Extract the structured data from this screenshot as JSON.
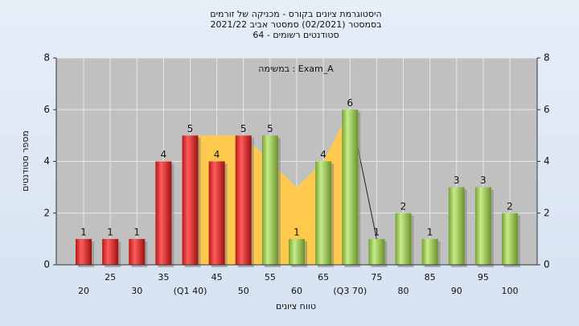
{
  "chart_data": {
    "type": "bar",
    "title": [
      "היסטוגרמת ציונים בקורס - מכניקה של זורמים",
      "בסמסטר (02/2021)  סמסטר אביב 2021/22",
      "סטודנטים רשומים - 64"
    ],
    "annotation": "במשימה : Exam_A",
    "x_label": "טווח ציונים",
    "y_label": "מספר סטודנטים",
    "categories": [
      "20",
      "25",
      "30",
      "35",
      "(Q1 40)",
      "45",
      "50",
      "55",
      "60",
      "65",
      "(Q3 70)",
      "75",
      "80",
      "85",
      "90",
      "95",
      "100"
    ],
    "values": [
      1,
      1,
      1,
      4,
      5,
      4,
      5,
      5,
      1,
      4,
      6,
      1,
      2,
      1,
      3,
      3,
      2
    ],
    "colors": [
      "red",
      "red",
      "red",
      "red",
      "red",
      "red",
      "red",
      "green",
      "green",
      "green",
      "green",
      "green",
      "green",
      "green",
      "green",
      "green",
      "green"
    ],
    "band_values": [
      null,
      null,
      null,
      null,
      5,
      5,
      5,
      4,
      3,
      4,
      6,
      null,
      null,
      null,
      null,
      null,
      null
    ],
    "band_color": "#ffc94d",
    "line_values": [
      null,
      null,
      null,
      null,
      null,
      null,
      null,
      null,
      null,
      null,
      6,
      1,
      null,
      null,
      null,
      null,
      null
    ],
    "line_color": "#222222",
    "ylim": [
      0,
      8
    ],
    "yticks": [
      0,
      2,
      4,
      6,
      8
    ],
    "grid": true
  }
}
